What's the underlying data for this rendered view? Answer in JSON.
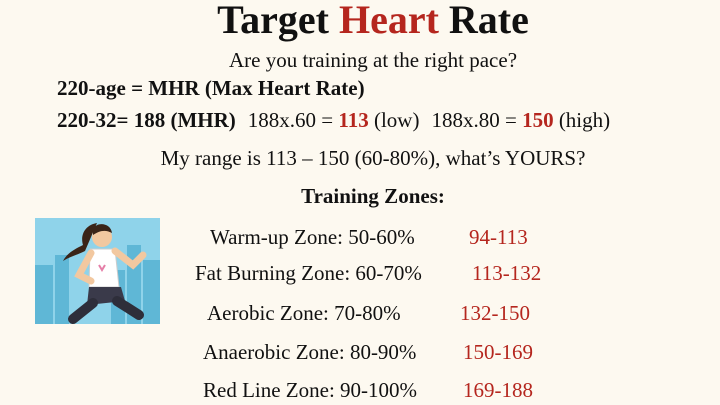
{
  "title": {
    "parts": [
      "Target",
      "Heart",
      "Rate"
    ]
  },
  "subtitle": "Are you training at the right pace?",
  "formula": "220-age = MHR (Max Heart Rate)",
  "example": {
    "mhr": "220-32= 188 (MHR)",
    "low_calc": "188x.60 =",
    "low_value": "113",
    "low_label": "(low)",
    "high_calc": "188x.80 =",
    "high_value": "150",
    "high_label": "(high)"
  },
  "range_text": "My range is 113 – 150 (60-80%), what’s YOURS?",
  "zones_heading": "Training Zones:",
  "zones": [
    {
      "name": "Warm-up Zone: 50-60%",
      "range": "94-113"
    },
    {
      "name": "Fat Burning Zone: 60-70%",
      "range": "113-132"
    },
    {
      "name": "Aerobic Zone: 70-80%",
      "range": "132-150"
    },
    {
      "name": "Anaerobic Zone: 80-90%",
      "range": "150-169"
    },
    {
      "name": "Red Line Zone: 90-100%",
      "range": "169-188"
    }
  ]
}
